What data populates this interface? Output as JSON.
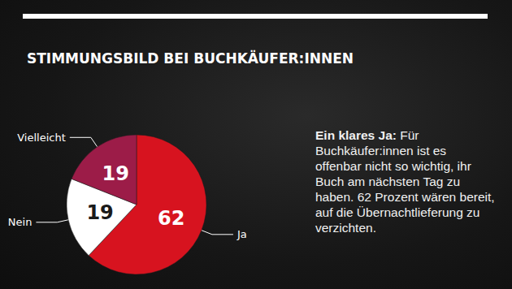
{
  "chart_data": {
    "type": "pie",
    "title": "STIMMUNGSBILD BEI BUCHKÄUFER:INNEN",
    "categories": [
      "Ja",
      "Nein",
      "Vielleicht"
    ],
    "values": [
      62,
      19,
      19
    ],
    "colors": [
      "#d7131f",
      "#ffffff",
      "#9c1c48"
    ],
    "data_labels": true,
    "annotation": {
      "lead": "Ein klares Ja:",
      "text": "Für Buchkäufer:innen ist es offenbar nicht so wichtig, ihr Buch am nächsten Tag zu haben. 62 Prozent wären bereit, auf die Übernachtlieferung zu verzichten."
    }
  }
}
